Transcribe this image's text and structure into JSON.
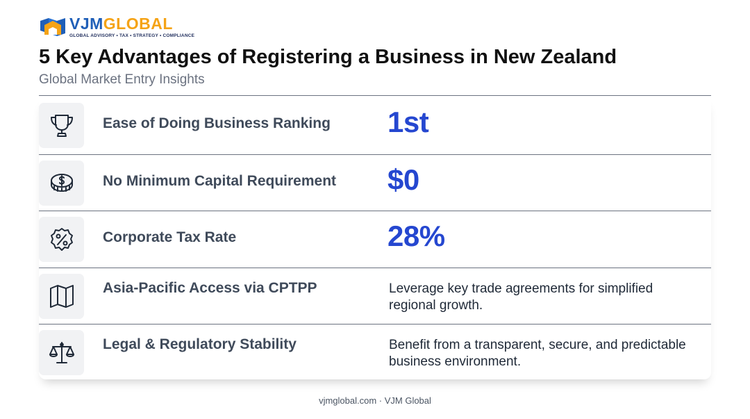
{
  "brand": {
    "name_part1": "VJM",
    "name_part2": "GLOBAL",
    "tagline": "GLOBAL ADVISORY • TAX • STRATEGY • COMPLIANCE",
    "colors": {
      "blue": "#1f5fb8",
      "orange": "#f5a316",
      "navy": "#1f2d5c"
    }
  },
  "header": {
    "title": "5 Key Advantages of Registering a Business in New Zealand",
    "subtitle": "Global Market Entry Insights"
  },
  "rows": [
    {
      "icon": "trophy-icon",
      "label": "Ease of Doing Business Ranking",
      "value": "1st"
    },
    {
      "icon": "coin-icon",
      "label": "No Minimum Capital Requirement",
      "value": "$0"
    },
    {
      "icon": "percent-badge-icon",
      "label": "Corporate Tax Rate",
      "value": "28%"
    },
    {
      "icon": "map-icon",
      "label": "Asia-Pacific Access via CPTPP",
      "detail": "Leverage key trade agreements for simplified regional growth."
    },
    {
      "icon": "scales-icon",
      "label": "Legal & Regulatory Stability",
      "detail": "Benefit from a transparent, secure, and predictable business environment."
    }
  ],
  "accent_color": "#2547d0",
  "footer": {
    "text": "vjmglobal.com · VJM Global"
  }
}
